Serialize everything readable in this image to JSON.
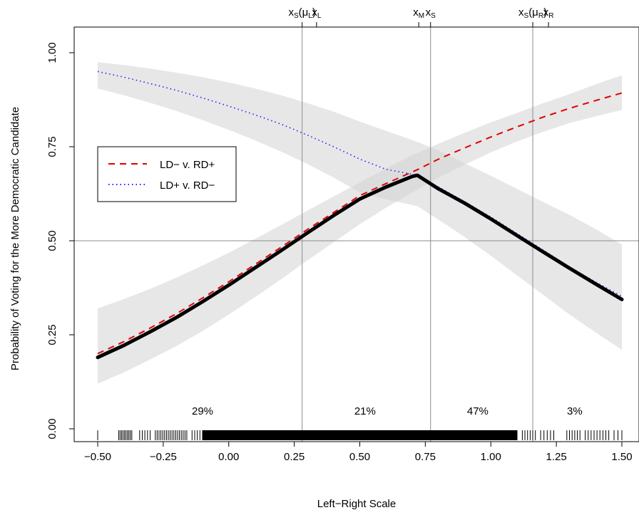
{
  "chart_data": {
    "type": "line",
    "title": "",
    "xlabel": "Left−Right Scale",
    "ylabel": "Probability of Voting for the More Democratic Candidate",
    "xlim": [
      -0.5,
      1.5
    ],
    "ylim": [
      0,
      1
    ],
    "x_ticks": [
      -0.5,
      -0.25,
      0.0,
      0.25,
      0.5,
      0.75,
      1.0,
      1.25,
      1.5
    ],
    "x_tick_labels": [
      "−0.50",
      "−0.25",
      "0.00",
      "0.25",
      "0.50",
      "0.75",
      "1.00",
      "1.25",
      "1.50"
    ],
    "y_ticks": [
      0.0,
      0.25,
      0.5,
      0.75,
      1.0
    ],
    "y_tick_labels": [
      "0.00",
      "0.25",
      "0.50",
      "0.75",
      "1.00"
    ],
    "grid": false,
    "legend_position": "upper-left",
    "hline": 0.5,
    "vlines": [
      0.28,
      0.77,
      1.16
    ],
    "top_axis": [
      {
        "x": 0.28,
        "main": "x",
        "sub": "S",
        "suffix": "(μ",
        "suffix_sub": "L",
        "close": ")"
      },
      {
        "x": 0.335,
        "main": "x",
        "sub": "L"
      },
      {
        "x": 0.725,
        "main": "x",
        "sub": "M"
      },
      {
        "x": 0.77,
        "main": "x",
        "sub": "S"
      },
      {
        "x": 1.16,
        "main": "x",
        "sub": "S",
        "suffix": "(μ",
        "suffix_sub": "R",
        "close": ")"
      },
      {
        "x": 1.22,
        "main": "x",
        "sub": "R"
      }
    ],
    "region_labels": [
      {
        "x": -0.1,
        "text": "29%"
      },
      {
        "x": 0.52,
        "text": "21%"
      },
      {
        "x": 0.95,
        "text": "47%"
      },
      {
        "x": 1.32,
        "text": "3%"
      }
    ],
    "x": [
      -0.5,
      -0.4,
      -0.3,
      -0.2,
      -0.1,
      0.0,
      0.1,
      0.2,
      0.3,
      0.4,
      0.5,
      0.6,
      0.7,
      0.72,
      0.8,
      0.9,
      1.0,
      1.1,
      1.2,
      1.3,
      1.4,
      1.5
    ],
    "series": [
      {
        "name": "LD− v. RD+",
        "color": "#e00000",
        "style": "dashed",
        "values": [
          0.2,
          0.232,
          0.268,
          0.306,
          0.348,
          0.391,
          0.437,
          0.483,
          0.53,
          0.575,
          0.62,
          0.652,
          0.683,
          0.689,
          0.717,
          0.747,
          0.776,
          0.803,
          0.829,
          0.852,
          0.873,
          0.893
        ],
        "band_lower": [
          0.12,
          0.15,
          0.184,
          0.22,
          0.26,
          0.304,
          0.35,
          0.398,
          0.448,
          0.496,
          0.544,
          0.588,
          0.628,
          0.636,
          0.668,
          0.702,
          0.735,
          0.764,
          0.79,
          0.813,
          0.831,
          0.848
        ],
        "band_upper": [
          0.32,
          0.345,
          0.372,
          0.402,
          0.434,
          0.468,
          0.505,
          0.542,
          0.58,
          0.618,
          0.655,
          0.692,
          0.728,
          0.733,
          0.758,
          0.787,
          0.815,
          0.84,
          0.866,
          0.89,
          0.916,
          0.94
        ]
      },
      {
        "name": "LD+ v. RD−",
        "color": "#2020ff",
        "style": "dotted",
        "values": [
          0.95,
          0.935,
          0.918,
          0.9,
          0.88,
          0.858,
          0.835,
          0.81,
          0.781,
          0.75,
          0.717,
          0.69,
          0.677,
          0.674,
          0.643,
          0.604,
          0.563,
          0.519,
          0.475,
          0.431,
          0.39,
          0.352
        ],
        "band_lower": [
          0.905,
          0.887,
          0.867,
          0.845,
          0.821,
          0.795,
          0.767,
          0.737,
          0.704,
          0.668,
          0.629,
          0.61,
          0.595,
          0.592,
          0.556,
          0.51,
          0.46,
          0.408,
          0.356,
          0.304,
          0.256,
          0.21
        ],
        "band_upper": [
          0.975,
          0.967,
          0.958,
          0.947,
          0.935,
          0.921,
          0.905,
          0.887,
          0.866,
          0.843,
          0.817,
          0.792,
          0.768,
          0.763,
          0.74,
          0.706,
          0.673,
          0.638,
          0.603,
          0.569,
          0.531,
          0.49
        ]
      },
      {
        "name": "",
        "color": "#000000",
        "style": "solid-thick",
        "values": [
          0.19,
          0.222,
          0.258,
          0.296,
          0.338,
          0.382,
          0.428,
          0.474,
          0.521,
          0.567,
          0.611,
          0.643,
          0.671,
          0.674,
          0.638,
          0.6,
          0.558,
          0.514,
          0.47,
          0.427,
          0.385,
          0.344
        ]
      }
    ],
    "rug_segments": [
      [
        -0.5,
        -0.49,
        1
      ],
      [
        -0.42,
        -0.37,
        10
      ],
      [
        -0.34,
        -0.3,
        5
      ],
      [
        -0.28,
        -0.16,
        18
      ],
      [
        -0.14,
        -0.11,
        4
      ],
      [
        -0.1,
        1.1,
        520
      ],
      [
        1.12,
        1.17,
        6
      ],
      [
        1.19,
        1.24,
        5
      ],
      [
        1.29,
        1.34,
        6
      ],
      [
        1.36,
        1.45,
        9
      ],
      [
        1.47,
        1.5,
        3
      ]
    ]
  }
}
